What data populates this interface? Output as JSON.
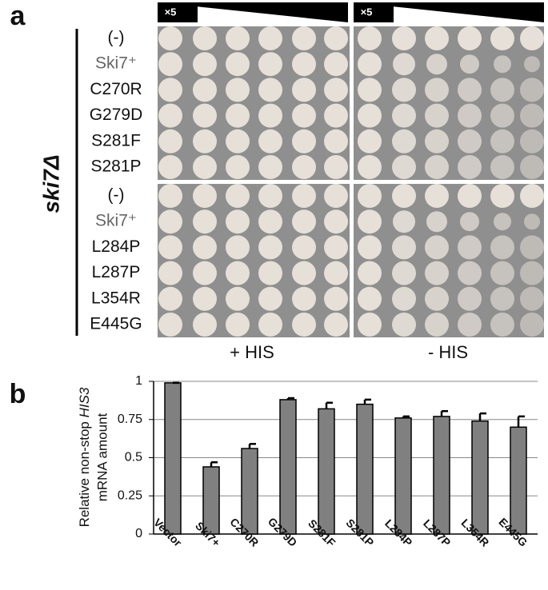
{
  "panel_a": {
    "label": "a",
    "strain": "ski7Δ",
    "dilution": "×5",
    "rows_top": [
      "(-)",
      "Ski7⁺",
      "C270R",
      "G279D",
      "S281F",
      "S281P"
    ],
    "rows_bottom": [
      "(-)",
      "Ski7⁺",
      "L284P",
      "L287P",
      "L354R",
      "E445G"
    ],
    "conditions": [
      "+ HIS",
      "- HIS"
    ]
  },
  "chart_data": {
    "type": "bar",
    "label": "b",
    "y_label": [
      "Relative non-stop",
      "HIS3",
      "mRNA amount"
    ],
    "categories": [
      "Vector",
      "Ski7+",
      "C270R",
      "G279D",
      "S281F",
      "S281P",
      "L284P",
      "L287P",
      "L354R",
      "E445G"
    ],
    "values": [
      0.99,
      0.44,
      0.56,
      0.88,
      0.82,
      0.85,
      0.76,
      0.77,
      0.74,
      0.7
    ],
    "errors": [
      0,
      0.03,
      0.03,
      0.01,
      0.04,
      0.03,
      0.01,
      0.035,
      0.05,
      0.07
    ],
    "color": "#808080",
    "ylim": [
      0,
      1
    ],
    "yticks": [
      0,
      0.25,
      0.5,
      0.75,
      1
    ],
    "grid": true
  }
}
